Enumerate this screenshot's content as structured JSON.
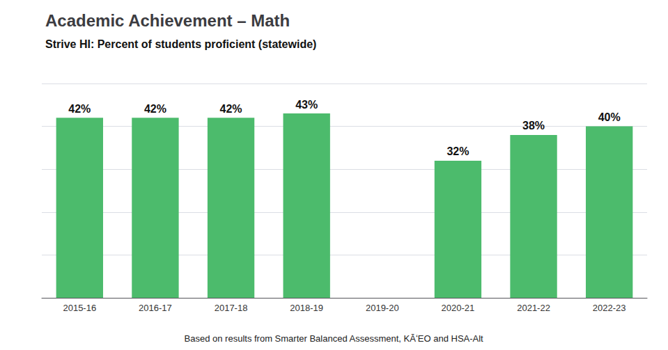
{
  "chart_data": {
    "type": "bar",
    "title": "Academic Achievement – Math",
    "subtitle": "Strive HI: Percent of students proficient (statewide)",
    "annotations": [
      "Based on results from Smarter Balanced Assessment, KĀʻEO and HSA-Alt"
    ],
    "categories": [
      "2015-16",
      "2016-17",
      "2017-18",
      "2018-19",
      "2019-20",
      "2020-21",
      "2021-22",
      "2022-23"
    ],
    "values": [
      42,
      42,
      42,
      43,
      null,
      32,
      38,
      40
    ],
    "value_labels": [
      "42%",
      "42%",
      "42%",
      "43%",
      null,
      "32%",
      "38%",
      "40%"
    ],
    "data_labels": true,
    "color": "#4cbb6c",
    "ylim": [
      0,
      50
    ],
    "yticks": [
      0,
      10,
      20,
      30,
      40,
      50
    ],
    "grid": true,
    "tick_labels": "x"
  }
}
